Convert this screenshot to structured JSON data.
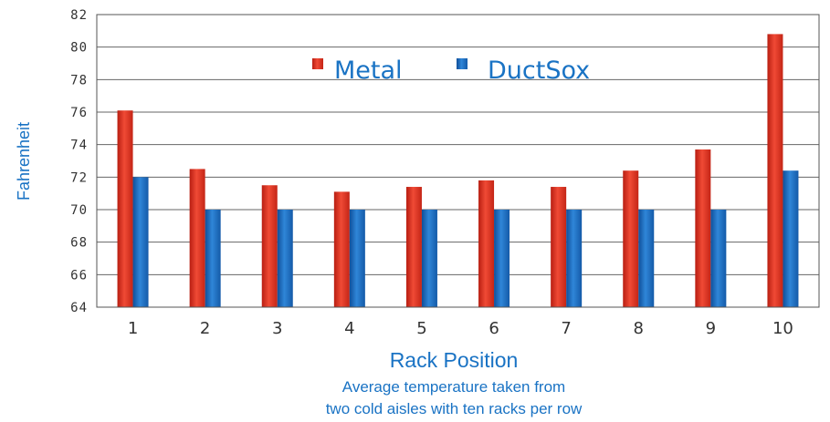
{
  "chart_data": {
    "type": "bar",
    "categories": [
      "1",
      "2",
      "3",
      "4",
      "5",
      "6",
      "7",
      "8",
      "9",
      "10"
    ],
    "series": [
      {
        "name": "Metal",
        "values": [
          76.1,
          72.5,
          71.5,
          71.1,
          71.4,
          71.8,
          71.4,
          72.4,
          73.7,
          80.8
        ],
        "color": "#e0301e"
      },
      {
        "name": "DuctSox",
        "values": [
          72.0,
          70.0,
          70.0,
          70.0,
          70.0,
          70.0,
          70.0,
          70.0,
          70.0,
          72.4
        ],
        "color": "#1a6fc4"
      }
    ],
    "ylabel": "Fahrenheit",
    "xlabel": "Rack Position",
    "subtitle_lines": [
      "Average temperature taken from",
      "two cold aisles with ten racks per row"
    ],
    "yticks": [
      "64",
      "66",
      "68",
      "70",
      "72",
      "74",
      "76",
      "78",
      "80",
      "82"
    ],
    "ylim": [
      64,
      82
    ],
    "grid": true,
    "legend_position": "top-center",
    "label_color": "#1a73c4"
  }
}
